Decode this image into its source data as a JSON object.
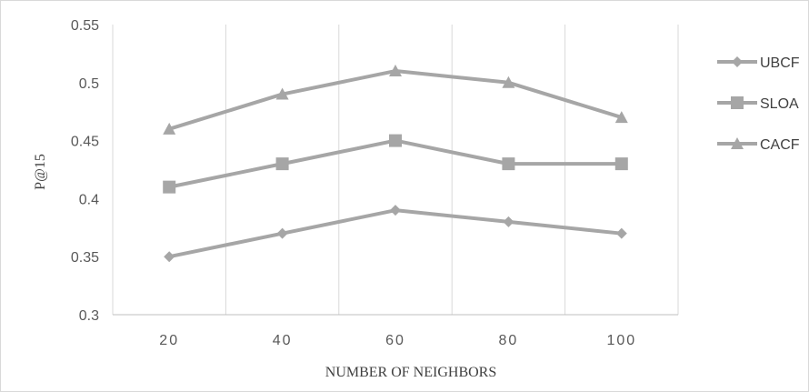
{
  "chart_data": {
    "type": "line",
    "title": "",
    "xlabel": "NUMBER OF NEIGHBORS",
    "ylabel": "P@15",
    "categories": [
      "20",
      "40",
      "60",
      "80",
      "100"
    ],
    "ylim": [
      0.3,
      0.55
    ],
    "yticks": [
      "0.3",
      "0.35",
      "0.4",
      "0.45",
      "0.5",
      "0.55"
    ],
    "grid": "vertical",
    "legend_position": "right",
    "series": [
      {
        "name": "UBCF",
        "marker": "diamond",
        "color": "#a6a6a6",
        "values": [
          0.35,
          0.37,
          0.39,
          0.38,
          0.37
        ]
      },
      {
        "name": "SLOA",
        "marker": "square",
        "color": "#a6a6a6",
        "values": [
          0.41,
          0.43,
          0.45,
          0.43,
          0.43
        ]
      },
      {
        "name": "CACF",
        "marker": "triangle",
        "color": "#a6a6a6",
        "values": [
          0.46,
          0.49,
          0.51,
          0.5,
          0.47
        ]
      }
    ]
  }
}
